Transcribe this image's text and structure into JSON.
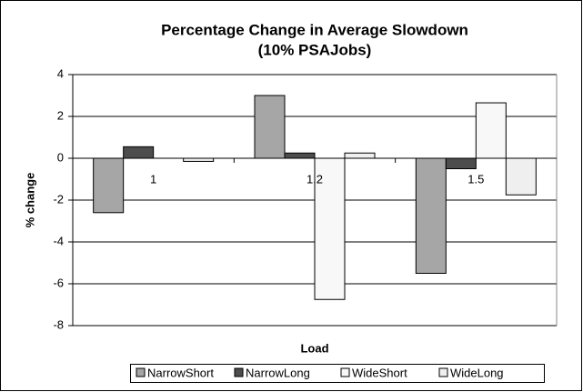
{
  "chart_data": {
    "type": "bar",
    "title": "Percentage Change in Average Slowdown",
    "subtitle": "(10% PSAJobs)",
    "x_label": "Load",
    "y_label": "% change",
    "categories": [
      "1",
      "1.2",
      "1.5"
    ],
    "series": [
      {
        "name": "NarrowShort",
        "color": "#a6a6a6",
        "values": [
          -2.6,
          3.0,
          -5.5
        ]
      },
      {
        "name": "NarrowLong",
        "color": "#4d4d4d",
        "values": [
          0.55,
          0.25,
          -0.5
        ]
      },
      {
        "name": "WideShort",
        "color": "#f8f8f8",
        "values": [
          0,
          -6.75,
          2.65
        ]
      },
      {
        "name": "WideLong",
        "color": "#efefef",
        "values": [
          -0.15,
          0.25,
          -1.75
        ]
      }
    ],
    "ylim": [
      -8,
      4
    ],
    "yticks": [
      -8,
      -6,
      -4,
      -2,
      0,
      2,
      4
    ],
    "grid": true,
    "legend": "bottom"
  }
}
